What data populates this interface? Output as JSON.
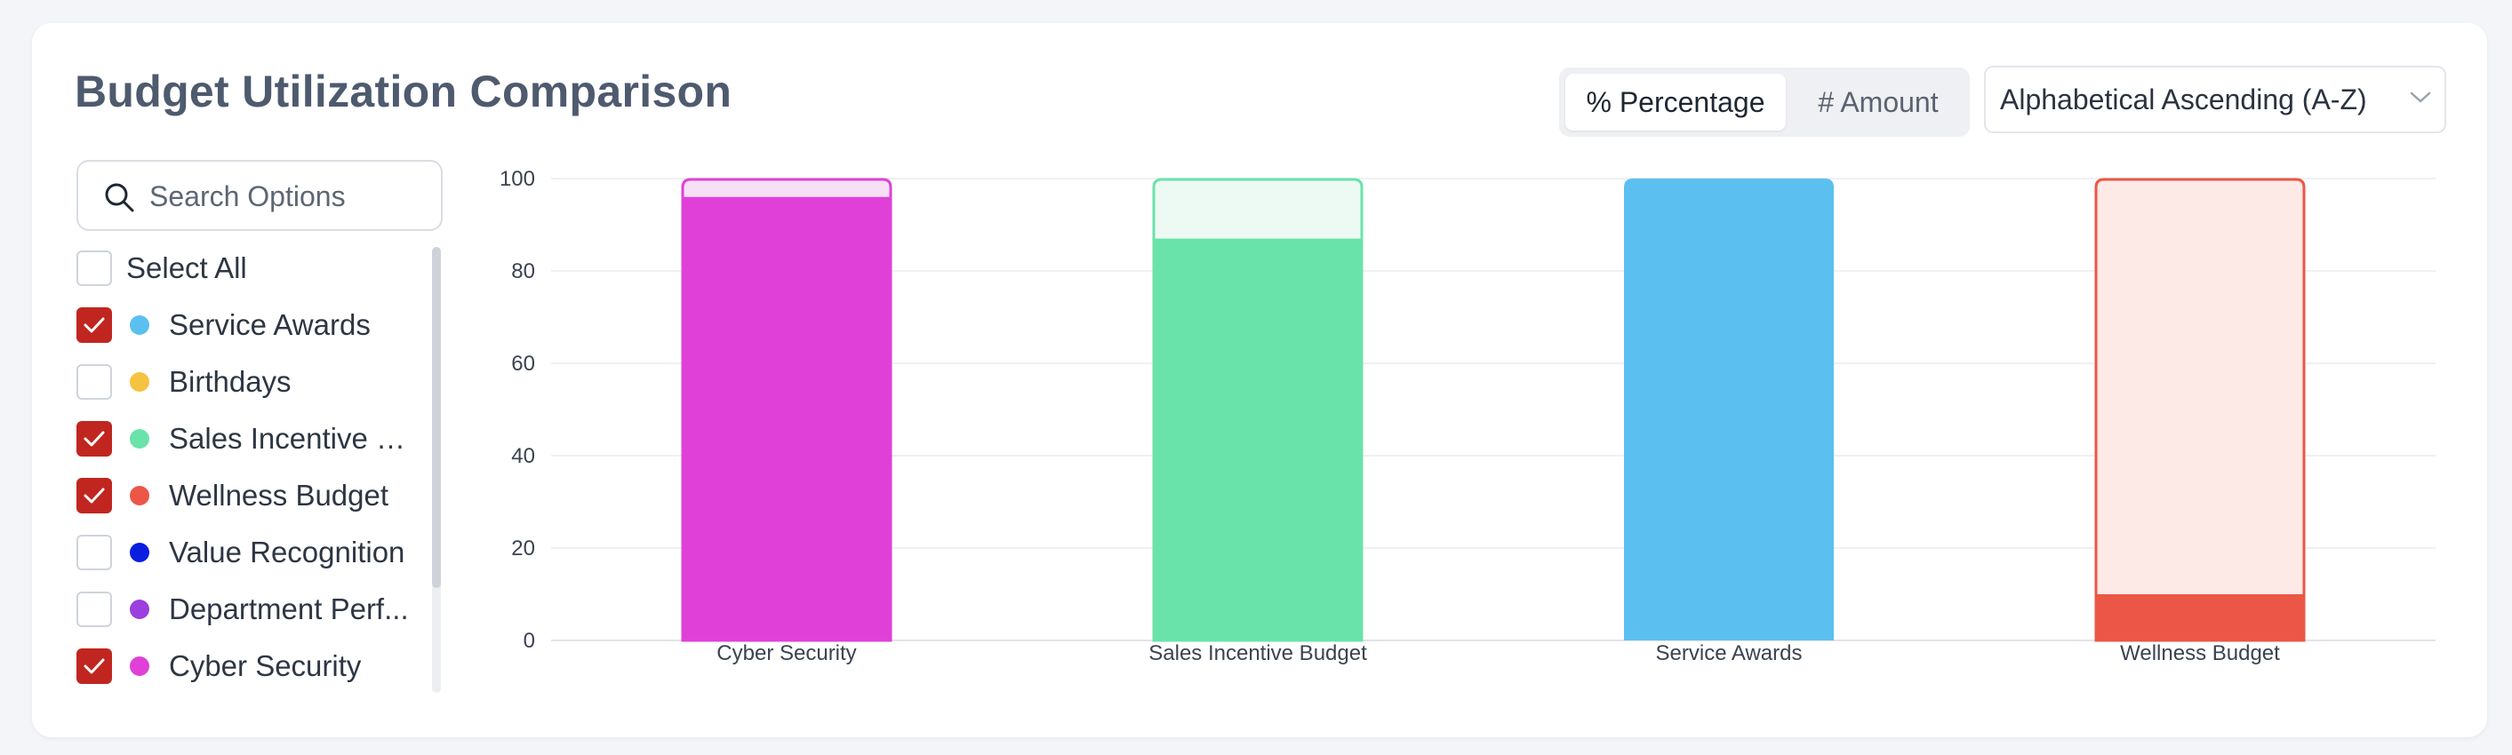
{
  "header": {
    "title": "Budget Utilization Comparison"
  },
  "view_toggle": {
    "percentage_label": "% Percentage",
    "amount_label": "# Amount",
    "active": "percentage"
  },
  "sort": {
    "value": "Alphabetical Ascending (A-Z)"
  },
  "search": {
    "placeholder": "Search Options",
    "value": ""
  },
  "filters": {
    "select_all_label": "Select All",
    "select_all_checked": false,
    "items": [
      {
        "label": "Service Awards",
        "checked": true,
        "color": "#5bc0f0"
      },
      {
        "label": "Birthdays",
        "checked": false,
        "color": "#f5c242"
      },
      {
        "label": "Sales Incentive B...",
        "checked": true,
        "color": "#6ae3aa"
      },
      {
        "label": "Wellness Budget",
        "checked": true,
        "color": "#ec5646"
      },
      {
        "label": "Value Recognition",
        "checked": false,
        "color": "#0a1ee0"
      },
      {
        "label": "Department Perf...",
        "checked": false,
        "color": "#9b3fe0"
      },
      {
        "label": "Cyber Security",
        "checked": true,
        "color": "#e040d8"
      }
    ]
  },
  "chart_data": {
    "type": "bar",
    "stacked": true,
    "categories": [
      "Cyber Security",
      "Sales Incentive Budget",
      "Service Awards",
      "Wellness Budget"
    ],
    "series": [
      {
        "values": [
          96,
          87,
          100,
          10
        ]
      },
      {
        "values": [
          4,
          13,
          0,
          90
        ]
      }
    ],
    "colors": [
      "#e040d8",
      "#6ae3aa",
      "#5bc0f0",
      "#ec5646"
    ],
    "remaining_fills": [
      "#f7dff5",
      "#edfaf4",
      "#5bc0f0",
      "#fdeae7"
    ],
    "ylim": [
      0,
      100
    ],
    "yticks": [
      0,
      20,
      40,
      60,
      80,
      100
    ],
    "grid": true
  }
}
